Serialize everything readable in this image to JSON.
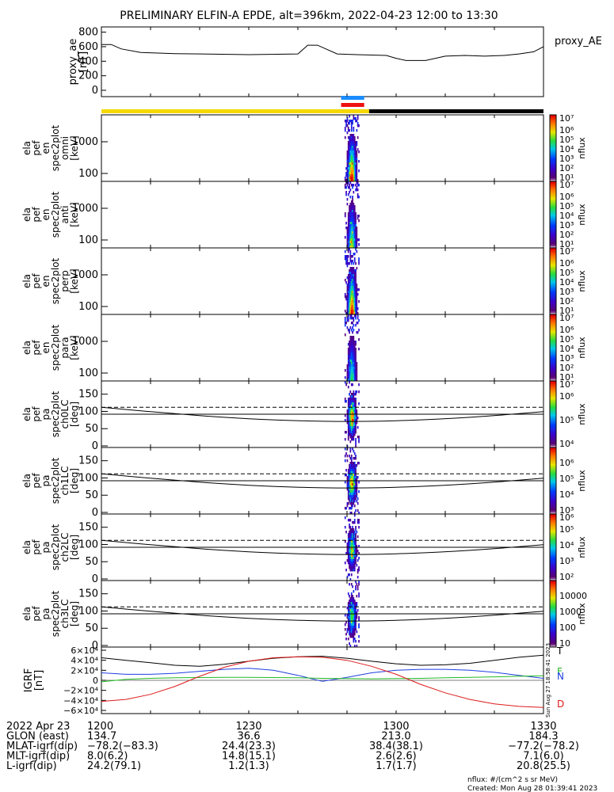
{
  "title": "PRELIMINARY ELFIN-A EPDE, alt=396km, 2022-04-23 12:00 to 13:30",
  "colors": {
    "yellow": "#f5d800",
    "black": "#000000",
    "blue": "#1a8cff",
    "red": "#ee1111",
    "line_green": "#22bb22",
    "line_blue": "#1f3fe0",
    "line_red": "#dd1a1a"
  },
  "chart_data": [
    {
      "type": "line",
      "panel": "proxy_ae",
      "ylabel_lines": [
        "proxy_ae",
        "[nT]"
      ],
      "right_label": "proxy_AE",
      "yticks": [
        "0",
        "200",
        "400",
        "600",
        "800"
      ],
      "ylim": [
        0,
        850
      ],
      "x": [
        0,
        2,
        4,
        8,
        15,
        30,
        40,
        42,
        44,
        48,
        52,
        58,
        60,
        62,
        66,
        70,
        74,
        78,
        82,
        85,
        88,
        90
      ],
      "values": [
        630,
        630,
        570,
        520,
        505,
        490,
        500,
        620,
        620,
        500,
        490,
        480,
        440,
        410,
        410,
        470,
        480,
        470,
        480,
        500,
        530,
        600
      ]
    },
    {
      "type": "heatmap",
      "panel": "spec2plot_omni",
      "ylabel_lines": [
        "ela",
        "pef",
        "en",
        "spec2plot",
        "omni",
        "[keV]"
      ],
      "yticks": [
        "100",
        "1000"
      ],
      "colorbar_label": "nflux",
      "colorbar_ticks": [
        "10⁶",
        "10⁵",
        "10⁴",
        "10³",
        "10²",
        "10¹"
      ],
      "colorbar_top": "10⁷",
      "colorbar_top2": "10⁶"
    },
    {
      "type": "heatmap",
      "panel": "spec2plot_anti",
      "ylabel_lines": [
        "ela",
        "pef",
        "en",
        "spec2plot",
        "anti",
        "[keV]"
      ],
      "yticks": [
        "100",
        "1000"
      ],
      "colorbar_label": "nflux",
      "colorbar_ticks": [
        "10⁶",
        "10⁵",
        "10⁴",
        "10³",
        "10²",
        "10¹"
      ],
      "colorbar_top": "10⁷",
      "colorbar_top2": "10⁶"
    },
    {
      "type": "heatmap",
      "panel": "spec2plot_perp",
      "ylabel_lines": [
        "ela",
        "pef",
        "en",
        "spec2plot",
        "perp",
        "[keV]"
      ],
      "yticks": [
        "100",
        "1000"
      ],
      "colorbar_label": "nflux",
      "colorbar_ticks": [
        "10⁶",
        "10⁵",
        "10⁴",
        "10³",
        "10²",
        "10¹"
      ],
      "colorbar_top": "10⁷",
      "colorbar_top2": "10⁶"
    },
    {
      "type": "heatmap",
      "panel": "spec2plot_para",
      "ylabel_lines": [
        "ela",
        "pef",
        "en",
        "spec2plot",
        "para",
        "[keV]"
      ],
      "yticks": [
        "100",
        "1000"
      ],
      "colorbar_label": "nflux",
      "colorbar_ticks": [
        "10⁶",
        "10⁵",
        "10⁴",
        "10³",
        "10²",
        "10¹"
      ],
      "colorbar_top": "10⁷",
      "colorbar_top2": "10⁶"
    },
    {
      "type": "heatmap",
      "panel": "ch0LC",
      "ylabel_lines": [
        "ela",
        "pef",
        "pa",
        "spec2plot",
        "ch0LC",
        "[deg]"
      ],
      "yticks": [
        "0",
        "50",
        "100",
        "150"
      ],
      "colorbar_label": "nflux",
      "colorbar_ticks": [
        "10⁶",
        "10⁵",
        "10⁴"
      ],
      "colorbar_top": "10⁷"
    },
    {
      "type": "heatmap",
      "panel": "ch1LC",
      "ylabel_lines": [
        "ela",
        "pef",
        "pa",
        "spec2plot",
        "ch1LC",
        "[deg]"
      ],
      "yticks": [
        "0",
        "50",
        "100",
        "150"
      ],
      "colorbar_label": "nflux",
      "colorbar_ticks": [
        "10⁶",
        "10⁵",
        "10⁴",
        "10³"
      ],
      "colorbar_top": ""
    },
    {
      "type": "heatmap",
      "panel": "ch2LC",
      "ylabel_lines": [
        "ela",
        "pef",
        "pa",
        "spec2plot",
        "ch2LC",
        "[deg]"
      ],
      "yticks": [
        "0",
        "50",
        "100",
        "150"
      ],
      "colorbar_label": "nflux",
      "colorbar_ticks": [
        "10⁵",
        "10⁴",
        "10³",
        "10²"
      ],
      "colorbar_top": "10⁶"
    },
    {
      "type": "heatmap",
      "panel": "ch3LC",
      "ylabel_lines": [
        "ela",
        "pef",
        "pa",
        "spec2plot",
        "ch3LC",
        "[deg]"
      ],
      "yticks": [
        "0",
        "50",
        "100",
        "150"
      ],
      "colorbar_label": "nflux",
      "colorbar_ticks": [
        "10000",
        "1000",
        "100",
        "10"
      ],
      "colorbar_top": ""
    },
    {
      "type": "line",
      "panel": "IGRF",
      "ylabel_lines": [
        "IGRF",
        "[nT]"
      ],
      "yticks": [
        "−6×10⁴",
        "−4×10⁴",
        "−2×10⁴",
        "0",
        "2×10⁴",
        "4×10⁴",
        "6×10⁴"
      ],
      "ylim": [
        -60000,
        60000
      ],
      "legend": [
        "T",
        "F",
        "N",
        "D"
      ],
      "x": [
        0,
        5,
        10,
        15,
        20,
        25,
        30,
        35,
        40,
        45,
        50,
        55,
        60,
        65,
        70,
        75,
        80,
        85,
        90
      ],
      "series": [
        {
          "name": "T",
          "color": "#000000",
          "values": [
            45000,
            40000,
            35000,
            30000,
            28000,
            32000,
            38000,
            44000,
            47000,
            48000,
            44000,
            38000,
            33000,
            30000,
            31000,
            34000,
            40000,
            46000,
            50000
          ]
        },
        {
          "name": "N",
          "color": "#1f3fe0",
          "values": [
            15000,
            12000,
            12000,
            14000,
            18000,
            22000,
            24000,
            20000,
            10000,
            -2000,
            6000,
            15000,
            20000,
            22000,
            22000,
            20000,
            16000,
            10000,
            4000
          ]
        },
        {
          "name": "F",
          "color": "#22bb22",
          "values": [
            -3000,
            2000,
            4000,
            5000,
            5500,
            6000,
            6000,
            5500,
            5000,
            4000,
            3500,
            3000,
            3500,
            4000,
            5000,
            6000,
            7000,
            8000,
            9000
          ]
        },
        {
          "name": "D",
          "color": "#dd1a1a",
          "values": [
            -42000,
            -38000,
            -28000,
            -12000,
            8000,
            26000,
            38000,
            45000,
            47000,
            46000,
            40000,
            28000,
            12000,
            -8000,
            -25000,
            -38000,
            -47000,
            -52000,
            -54000
          ]
        }
      ]
    }
  ],
  "footer": {
    "rows": [
      {
        "label": "2022 Apr 23",
        "values": [
          "1200",
          "1230",
          "1300",
          "1330"
        ]
      },
      {
        "label": "GLON (east)",
        "values": [
          "134.7",
          "36.6",
          "213.0",
          "184.3"
        ]
      },
      {
        "label": "MLAT-igrf(dip)",
        "values": [
          "−78.2(−83.3)",
          "24.4(23.3)",
          "38.4(38.1)",
          "−77.2(−78.2)"
        ]
      },
      {
        "label": "MLT-igrf(dip)",
        "values": [
          "8.0(6.2)",
          "14.8(15.1)",
          "2.6(2.6)",
          "7.1(6.0)"
        ]
      },
      {
        "label": "L-igrf(dip)",
        "values": [
          "24.2(79.1)",
          "1.2(1.3)",
          "1.7(1.7)",
          "20.8(25.5)"
        ]
      }
    ],
    "units_note": "nflux: #/(cm^2 s sr MeV)",
    "created": "Created: Mon Aug 28 01:39:41 2023",
    "side_stamp": "Sun Aug 27 18:58:41 2023"
  }
}
